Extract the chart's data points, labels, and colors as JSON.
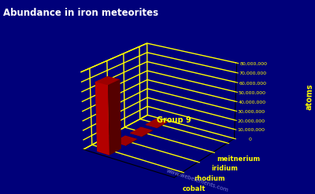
{
  "title": "Abundance in iron meteorites",
  "ylabel": "atoms",
  "group_label": "Group 9",
  "elements": [
    "cobalt",
    "rhodium",
    "iridium",
    "meitnerium"
  ],
  "values": [
    72000000,
    200000,
    50000,
    10000
  ],
  "bar_color": "#cc0000",
  "background_color": "#00007a",
  "grid_color": "#ffff00",
  "text_color": "#ffff00",
  "title_color": "#ffffff",
  "yticks": [
    0,
    10000000,
    20000000,
    30000000,
    40000000,
    50000000,
    60000000,
    70000000,
    80000000
  ],
  "ytick_labels": [
    "0",
    "10,000,000",
    "20,000,000",
    "30,000,000",
    "40,000,000",
    "50,000,000",
    "60,000,000",
    "70,000,000",
    "80,000,000"
  ],
  "ymax": 80000000,
  "watermark": "www.webelements.com"
}
